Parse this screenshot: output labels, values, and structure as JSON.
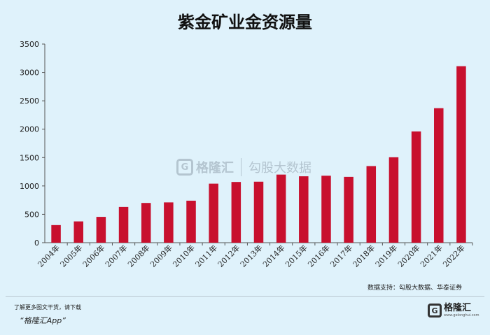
{
  "chart_data": {
    "type": "bar",
    "title": "紫金矿业金资源量",
    "categories": [
      "2004年",
      "2005年",
      "2006年",
      "2007年",
      "2008年",
      "2009年",
      "2010年",
      "2011年",
      "2012年",
      "2013年",
      "2014年",
      "2015年",
      "2016年",
      "2017年",
      "2018年",
      "2019年",
      "2020年",
      "2021年",
      "2022年"
    ],
    "values": [
      310,
      375,
      455,
      630,
      700,
      710,
      740,
      1040,
      1070,
      1075,
      1200,
      1170,
      1180,
      1160,
      1350,
      1505,
      1960,
      2370,
      3110
    ],
    "ylim": [
      0,
      3500
    ],
    "yticks": [
      0,
      500,
      1000,
      1500,
      2000,
      2500,
      3000,
      3500
    ],
    "grid": false,
    "bar_color": "#c8102e"
  },
  "source": "数据支持：勾股大数据、华泰证券",
  "watermark": {
    "mark": "G",
    "brand": "格隆汇",
    "partner": "勾股大数据"
  },
  "footer": {
    "line1": "了解更多图文干货，请下载",
    "line2": "“格隆汇App”",
    "brand_mark": "G",
    "brand_name": "格隆汇",
    "brand_site": "www.gelonghui.com"
  }
}
